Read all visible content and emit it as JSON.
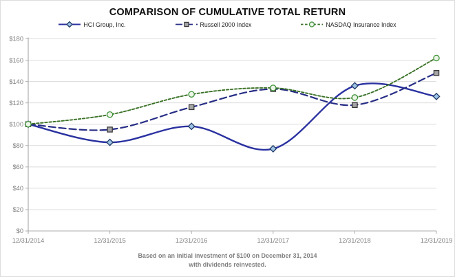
{
  "title": "COMPARISON OF CUMULATIVE TOTAL RETURN",
  "footer": {
    "line1": "Based on an initial investment of $100 on December 31, 2014",
    "line2": "with dividends reinvested."
  },
  "colors": {
    "grid": "#dcdcdc",
    "axis": "#aeaeae",
    "tick_label": "#7f7f7f",
    "title_text": "#0f0f0f",
    "footer_text": "#7f7f7f"
  },
  "chart_data": {
    "type": "line",
    "title": "COMPARISON OF CUMULATIVE TOTAL RETURN",
    "xlabel": "",
    "ylabel": "",
    "categories": [
      "12/31/2014",
      "12/31/2015",
      "12/31/2016",
      "12/31/2017",
      "12/31/2018",
      "12/31/2019"
    ],
    "ylim": [
      0,
      180
    ],
    "y_tick_step": 20,
    "y_tick_labels": [
      "$0",
      "$20",
      "$40",
      "$60",
      "$80",
      "$100",
      "$120",
      "$140",
      "$160",
      "$180"
    ],
    "grid": true,
    "legend_position": "top",
    "line_smoothing": true,
    "series": [
      {
        "id": "hci-group",
        "name": "HCI Group, Inc.",
        "values": [
          100,
          83,
          98,
          77,
          136,
          126
        ],
        "line_color": "#2a31a0",
        "dash": "",
        "stroke_width": 2.4,
        "marker": "diamond",
        "marker_fill": "#9dc3e6",
        "marker_stroke": "#1f3864"
      },
      {
        "id": "russell-2000",
        "name": "Russell 2000 Index",
        "values": [
          100,
          95,
          116,
          133,
          118,
          148
        ],
        "line_color": "#272e85",
        "dash": "10 5",
        "stroke_width": 2.2,
        "marker": "square",
        "marker_fill": "#a6a6a6",
        "marker_stroke": "#3a3a3a"
      },
      {
        "id": "nasdaq-insurance",
        "name": "NASDAQ Insurance Index",
        "values": [
          100,
          109,
          128,
          134,
          125,
          162
        ],
        "line_color": "#3a7226",
        "dash": "3.5 2.6",
        "stroke_width": 1.9,
        "marker": "circle",
        "marker_fill": "#ecf5e8",
        "marker_stroke": "#3c9136"
      }
    ]
  }
}
